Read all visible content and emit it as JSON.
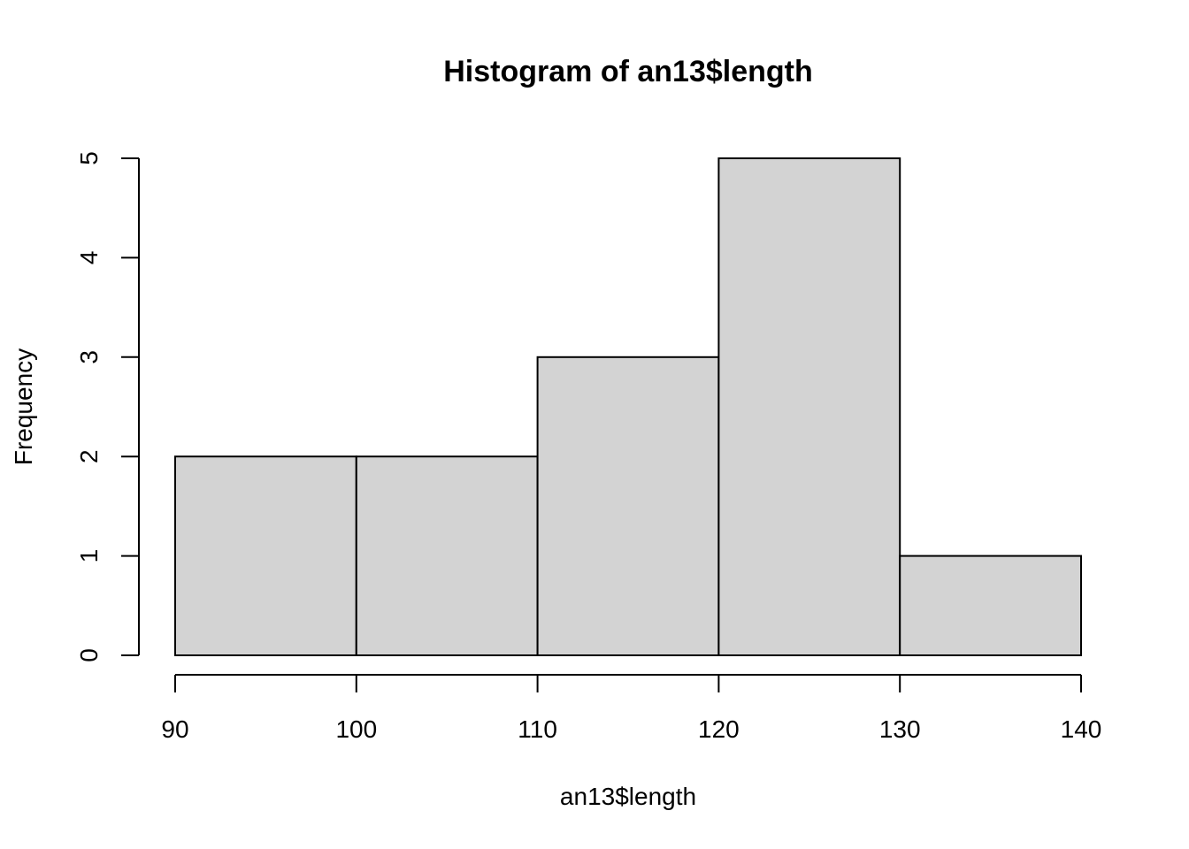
{
  "chart_data": {
    "type": "bar",
    "subtype": "histogram",
    "title": "Histogram of an13$length",
    "xlabel": "an13$length",
    "ylabel": "Frequency",
    "bins": [
      {
        "start": 90,
        "end": 100,
        "count": 2
      },
      {
        "start": 100,
        "end": 110,
        "count": 2
      },
      {
        "start": 110,
        "end": 120,
        "count": 3
      },
      {
        "start": 120,
        "end": 130,
        "count": 5
      },
      {
        "start": 130,
        "end": 140,
        "count": 1
      }
    ],
    "x_ticks": [
      90,
      100,
      110,
      120,
      130,
      140
    ],
    "y_ticks": [
      0,
      1,
      2,
      3,
      4,
      5
    ],
    "xlim": [
      90,
      140
    ],
    "ylim": [
      0,
      5
    ],
    "grid": false,
    "bar_color": "#d3d3d3",
    "edge_color": "#000000"
  }
}
